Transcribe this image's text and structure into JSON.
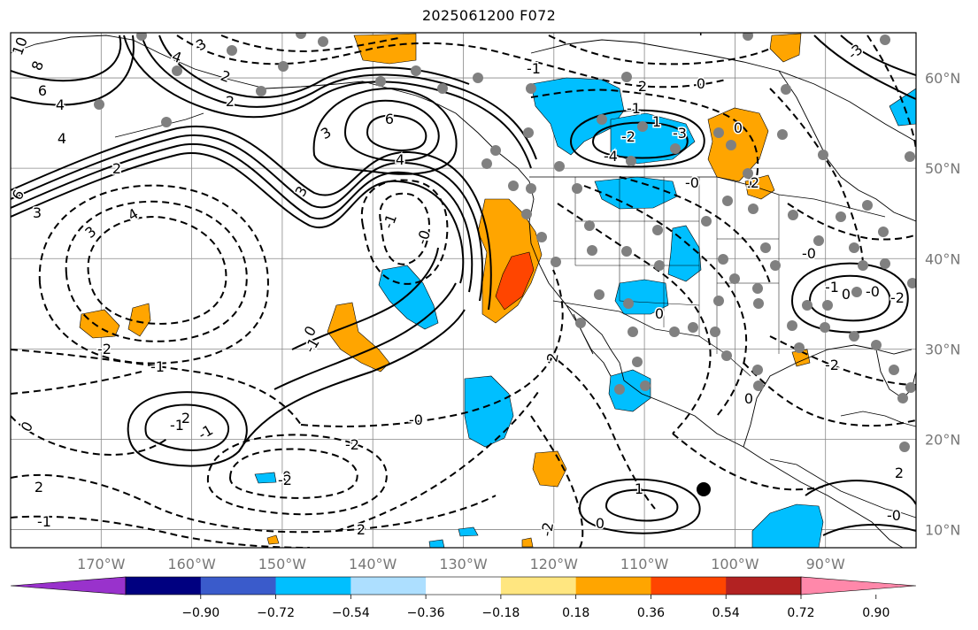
{
  "title": "2025061200 F072",
  "map": {
    "projection": "PlateCarree",
    "extent_lon": [
      -180,
      -80
    ],
    "extent_lat": [
      8,
      65
    ],
    "lon_ticks": [
      {
        "lon": -170,
        "label": "170°W"
      },
      {
        "lon": -160,
        "label": "160°W"
      },
      {
        "lon": -150,
        "label": "150°W"
      },
      {
        "lon": -140,
        "label": "140°W"
      },
      {
        "lon": -130,
        "label": "130°W"
      },
      {
        "lon": -120,
        "label": "120°W"
      },
      {
        "lon": -110,
        "label": "110°W"
      },
      {
        "lon": -100,
        "label": "100°W"
      },
      {
        "lon": -90,
        "label": "90°W"
      }
    ],
    "lat_ticks": [
      {
        "lat": 60,
        "label": "60°N"
      },
      {
        "lat": 50,
        "label": "50°N"
      },
      {
        "lat": 40,
        "label": "40°N"
      },
      {
        "lat": 30,
        "label": "30°N"
      },
      {
        "lat": 20,
        "label": "20°N"
      },
      {
        "lat": 10,
        "label": "10°N"
      }
    ],
    "gridlines": true,
    "contour_labels": [
      "10",
      "8",
      "6",
      "4",
      "6",
      "4",
      "2",
      "3",
      "4",
      "3",
      "4",
      "3",
      "2",
      "6",
      "4",
      "3",
      "3",
      "2",
      "-2",
      "-3",
      "-4",
      "-1",
      "-0",
      "0",
      "-1",
      "-2",
      "-1",
      "2",
      "-1",
      "-0",
      "-2",
      "0",
      "2",
      "-1",
      "2",
      "0",
      "-2",
      "1",
      "2",
      "0",
      "-0",
      "-1",
      "1",
      "-0",
      "2",
      "-2",
      "-0",
      "-1",
      "0",
      "-0",
      "0",
      "1",
      "0",
      "-2",
      "2",
      "0",
      "-1",
      "-1",
      "0",
      "-2",
      "2",
      "-3",
      "4"
    ]
  },
  "colorbar": {
    "extend": "both",
    "colors": [
      "#9932CC",
      "#000080",
      "#3A5BCB",
      "#00BFFF",
      "#ADDFFF",
      "#FFFFFF",
      "#FFE680",
      "#FFA500",
      "#FF4500",
      "#B22222",
      "#FF88AA"
    ],
    "boundaries": [
      -0.9,
      -0.72,
      -0.54,
      -0.36,
      -0.18,
      0.18,
      0.36,
      0.54,
      0.72,
      0.9
    ],
    "tick_labels": [
      "−0.90",
      "−0.72",
      "−0.54",
      "−0.36",
      "−0.18",
      "0.18",
      "0.36",
      "0.54",
      "0.72",
      "0.90"
    ]
  },
  "colors": {
    "positive_shading": "#FFA500",
    "strong_positive": "#FF4500",
    "negative_shading": "#00BFFF",
    "station_marker": "#808080",
    "contour": "#000000",
    "tick_text": "#777777"
  }
}
